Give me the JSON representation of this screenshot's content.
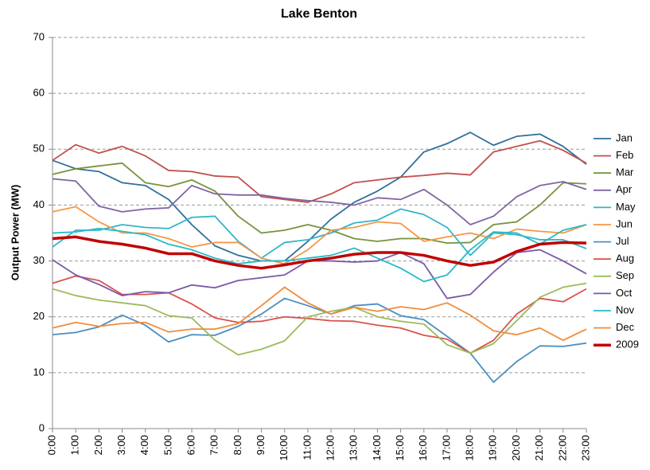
{
  "chart_data": {
    "type": "line",
    "title": "Lake Benton",
    "y_label": "Output Power (MW)",
    "categories": [
      "0:00",
      "1:00",
      "2:00",
      "3:00",
      "4:00",
      "5:00",
      "6:00",
      "7:00",
      "8:00",
      "9:00",
      "10:00",
      "11:00",
      "12:00",
      "13:00",
      "14:00",
      "15:00",
      "16:00",
      "17:00",
      "18:00",
      "19:00",
      "20:00",
      "21:00",
      "22:00",
      "23:00"
    ],
    "ylim": [
      0,
      70
    ],
    "yticks": [
      0,
      10,
      20,
      30,
      40,
      50,
      60,
      70
    ],
    "grid": true,
    "legend": "right",
    "series": [
      {
        "name": "Jan",
        "color": "#2f6f98",
        "line_width": 1.8,
        "values": [
          48,
          46.5,
          46,
          44,
          43.5,
          41,
          36.5,
          32.7,
          31,
          30,
          30,
          33.5,
          37.5,
          40.5,
          42.5,
          45,
          49.5,
          51,
          53,
          50.7,
          52.3,
          52.7,
          50.5,
          47.3
        ]
      },
      {
        "name": "Feb",
        "color": "#c0504d",
        "line_width": 1.8,
        "values": [
          48,
          50.8,
          49.3,
          50.5,
          48.8,
          46.2,
          46,
          45.2,
          45,
          41.5,
          41,
          40.5,
          42,
          44,
          44.5,
          45,
          45.3,
          45.7,
          45.4,
          49.5,
          50.5,
          51.5,
          49.8,
          47.5
        ]
      },
      {
        "name": "Mar",
        "color": "#77933c",
        "line_width": 1.8,
        "values": [
          45.5,
          46.5,
          47,
          47.5,
          44,
          43.3,
          44.5,
          42.5,
          38,
          35,
          35.5,
          36.5,
          35.5,
          34,
          33.5,
          34,
          34,
          33.2,
          33.3,
          36.5,
          37,
          40,
          44,
          43.8
        ]
      },
      {
        "name": "Apr",
        "color": "#8064a2",
        "line_width": 1.8,
        "values": [
          44.7,
          44.3,
          39.8,
          38.8,
          39.3,
          39.5,
          43.5,
          42,
          41.8,
          41.8,
          41.2,
          40.8,
          40.5,
          40,
          41.3,
          41,
          42.8,
          40,
          36.5,
          38,
          41.5,
          43.5,
          44.2,
          42.8
        ]
      },
      {
        "name": "May",
        "color": "#31b6c8",
        "line_width": 1.8,
        "values": [
          32.5,
          35.5,
          35.5,
          36.5,
          36,
          35.8,
          37.8,
          38,
          33.5,
          30.5,
          33.3,
          33.8,
          35,
          36.8,
          37.3,
          39.3,
          38.3,
          36,
          31,
          35,
          34.7,
          33.8,
          33.8,
          32.2
        ]
      },
      {
        "name": "Jun",
        "color": "#f79646",
        "line_width": 1.8,
        "values": [
          38.8,
          39.7,
          37,
          35,
          35,
          34,
          32.5,
          33.3,
          33.3,
          30.5,
          29.5,
          32,
          35.5,
          36,
          37,
          36.7,
          33.5,
          34.3,
          35,
          34,
          35.7,
          35.3,
          35,
          36.5
        ]
      },
      {
        "name": "Jul",
        "color": "#4a8fc0",
        "line_width": 1.8,
        "values": [
          16.8,
          17.2,
          18.2,
          20.3,
          18.5,
          15.5,
          16.8,
          16.7,
          18.3,
          20.5,
          23.3,
          22,
          20.5,
          22,
          22.3,
          20.2,
          19.5,
          16.5,
          13.5,
          8.3,
          12,
          14.8,
          14.7,
          15.3
        ]
      },
      {
        "name": "Aug",
        "color": "#d9534f",
        "line_width": 1.8,
        "values": [
          26,
          27.3,
          26.5,
          24,
          24,
          24.3,
          22.3,
          19.8,
          19,
          19.2,
          20,
          19.7,
          19.3,
          19.2,
          18.5,
          18,
          16.7,
          16,
          13.5,
          15.8,
          20.5,
          23.3,
          22.7,
          25
        ]
      },
      {
        "name": "Sep",
        "color": "#9bbb59",
        "line_width": 1.8,
        "values": [
          25,
          23.8,
          23,
          22.5,
          22,
          20.2,
          19.8,
          15.8,
          13.2,
          14.2,
          15.7,
          20,
          21,
          21.7,
          20,
          19.2,
          18.7,
          15,
          13.5,
          15.2,
          19.3,
          23.5,
          25.3,
          26
        ]
      },
      {
        "name": "Oct",
        "color": "#7a58a8",
        "line_width": 1.8,
        "values": [
          30.2,
          27.5,
          25.8,
          23.8,
          24.5,
          24.3,
          25.7,
          25.2,
          26.5,
          27,
          27.5,
          30,
          30,
          29.8,
          30,
          31.5,
          29.5,
          23.3,
          24,
          28,
          31.5,
          32,
          30,
          27.7
        ]
      },
      {
        "name": "Nov",
        "color": "#22bcc8",
        "line_width": 1.8,
        "values": [
          35,
          35.2,
          35.8,
          35.3,
          34.7,
          33,
          32,
          30.5,
          29.5,
          30,
          30,
          30.5,
          31,
          32.3,
          30.5,
          28.7,
          26.3,
          27.5,
          32,
          35.2,
          35,
          33,
          35.5,
          36.5
        ]
      },
      {
        "name": "Dec",
        "color": "#f08c3a",
        "line_width": 1.8,
        "values": [
          18,
          19,
          18.3,
          18.8,
          19,
          17.3,
          17.8,
          17.8,
          18.8,
          22,
          25.3,
          22.5,
          20.5,
          21.7,
          21,
          21.8,
          21.3,
          22.5,
          20.3,
          17.5,
          16.8,
          18,
          15.8,
          17.8
        ]
      },
      {
        "name": "2009",
        "color": "#c00000",
        "line_width": 3.5,
        "values": [
          34,
          34.3,
          33.5,
          33,
          32.3,
          31.3,
          31.3,
          30,
          29.2,
          28.7,
          29.3,
          30,
          30.5,
          31.2,
          31.5,
          31.5,
          31,
          30,
          29.2,
          29.8,
          31.7,
          33,
          33.3,
          33.2
        ]
      }
    ]
  }
}
